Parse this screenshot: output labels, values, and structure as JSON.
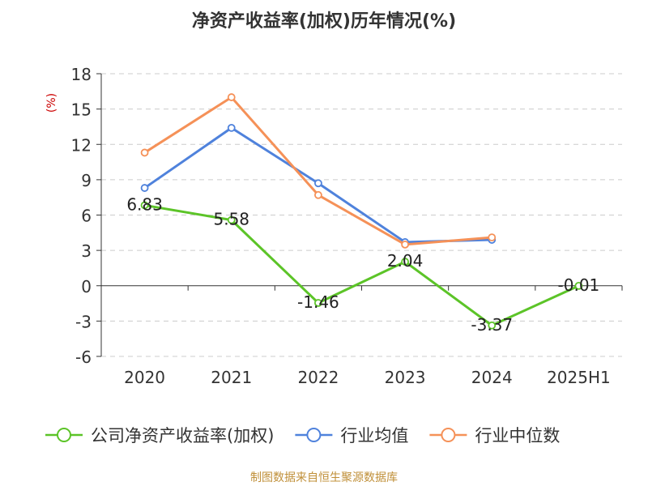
{
  "chart_data": {
    "type": "line",
    "title": "净资产收益率(加权)历年情况(%)",
    "ylabel": "(%)",
    "categories": [
      "2020",
      "2021",
      "2022",
      "2023",
      "2024",
      "2025H1"
    ],
    "ylim": [
      -6,
      18
    ],
    "yticks": [
      18,
      15,
      12,
      9,
      6,
      3,
      0,
      -3,
      -6
    ],
    "grid": true,
    "legend_position": "bottom",
    "series": [
      {
        "name": "公司净资产收益率(加权)",
        "color": "#5cc428",
        "values": [
          6.83,
          5.58,
          -1.46,
          2.04,
          -3.37,
          -0.01
        ],
        "labels": [
          "6.83",
          "5.58",
          "-1.46",
          "2.04",
          "-3.37",
          "-0.01"
        ]
      },
      {
        "name": "行业均值",
        "color": "#4f82dc",
        "values": [
          8.3,
          13.4,
          8.7,
          3.7,
          3.9,
          null
        ]
      },
      {
        "name": "行业中位数",
        "color": "#f59158",
        "values": [
          11.3,
          16.0,
          7.7,
          3.5,
          4.1,
          null
        ]
      }
    ],
    "source": "制图数据来自恒生聚源数据库"
  }
}
